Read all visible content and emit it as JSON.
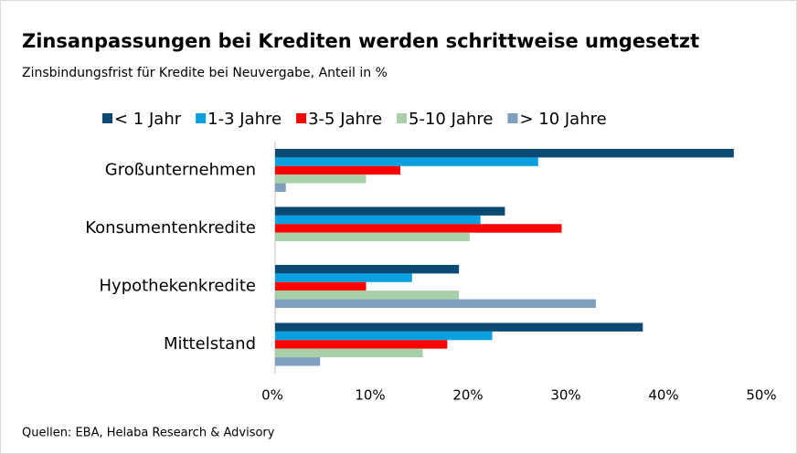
{
  "chart_data": {
    "type": "barh",
    "title": "Zinsanpassungen bei Krediten werden schrittweise umgesetzt",
    "subtitle": "Zinsbindungsfrist für Kredite bei Neuvergabe, Anteil in %",
    "source": "Quellen: EBA, Helaba Research & Advisory",
    "categories": [
      "Großunternehmen",
      "Konsumentenkredite",
      "Hypothekenkredite",
      "Mittelstand"
    ],
    "series": [
      {
        "name": "< 1 Jahr",
        "color": "#0b4a74",
        "values": [
          46.9,
          23.5,
          18.8,
          37.6
        ]
      },
      {
        "name": "1-3 Jahre",
        "color": "#0aa0e0",
        "values": [
          26.9,
          21,
          14,
          22.2
        ]
      },
      {
        "name": "3-5 Jahre",
        "color": "#ff0000",
        "values": [
          12.8,
          29.3,
          9.3,
          17.6
        ]
      },
      {
        "name": "5-10 Jahre",
        "color": "#a8cfa8",
        "values": [
          9.3,
          19.9,
          18.8,
          15.1
        ]
      },
      {
        "name": "> 10 Jahre",
        "color": "#7f9fbf",
        "values": [
          1.1,
          0,
          32.8,
          4.6
        ]
      }
    ],
    "xlim": [
      0,
      50
    ],
    "xticks": [
      {
        "value": 0,
        "label": "0%"
      },
      {
        "value": 10,
        "label": "10%"
      },
      {
        "value": 20,
        "label": "20%"
      },
      {
        "value": 30,
        "label": "30%"
      },
      {
        "value": 40,
        "label": "40%"
      },
      {
        "value": 50,
        "label": "50%"
      }
    ],
    "legend": "top",
    "grid": false
  }
}
